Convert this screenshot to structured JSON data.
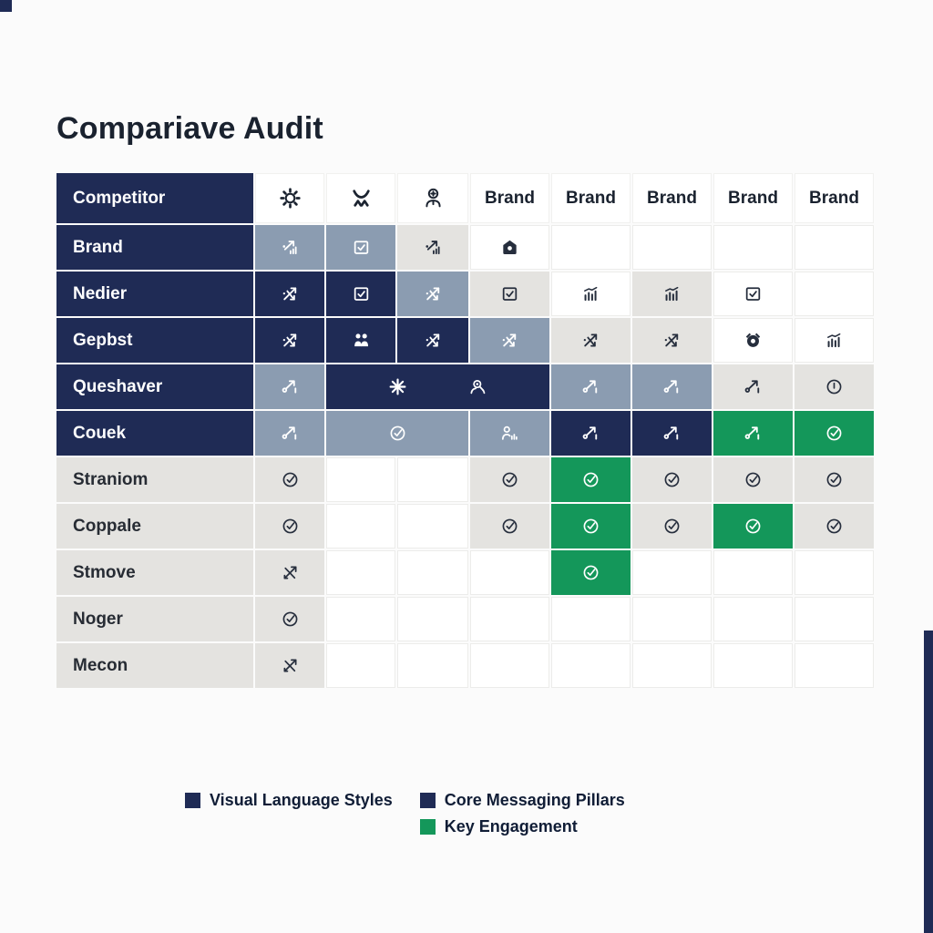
{
  "title": "Compariave Audit",
  "colors": {
    "navy": "#1f2b55",
    "slate": "#8b9cb1",
    "gray": "#e4e3e0",
    "green": "#14975a",
    "ink": "#1a222f",
    "page_background": "#fbfbfb"
  },
  "chart_data": {
    "type": "table",
    "title": "Compariave Audit",
    "header": {
      "competitor_label": "Competitor",
      "icon_columns": [
        "gear-icon",
        "activity-person-icon",
        "engineer-plus-icon"
      ],
      "brand_columns": [
        "Brand",
        "Brand",
        "Brand",
        "Brand",
        "Brand"
      ]
    },
    "rows": [
      {
        "label": "Brand",
        "label_style": "navy",
        "cells": [
          {
            "bg": "slate",
            "icon": "trend-chart-icon",
            "tone": "light"
          },
          {
            "bg": "slate",
            "icon": "checkbox-icon",
            "tone": "light"
          },
          {
            "bg": "gray",
            "icon": "trend-chart-icon",
            "tone": "dark"
          },
          {
            "bg": "white",
            "icon": "home-icon",
            "tone": "dark"
          },
          {
            "bg": "white"
          },
          {
            "bg": "white"
          },
          {
            "bg": "white"
          },
          {
            "bg": "white"
          }
        ]
      },
      {
        "label": "Nedier",
        "label_style": "navy",
        "cells": [
          {
            "bg": "navy",
            "icon": "crossed-trend-icon",
            "tone": "light"
          },
          {
            "bg": "navy",
            "icon": "checkbox-icon",
            "tone": "light"
          },
          {
            "bg": "slate",
            "icon": "crossed-trend-icon",
            "tone": "light"
          },
          {
            "bg": "gray",
            "icon": "checkbox-icon",
            "tone": "dark"
          },
          {
            "bg": "white",
            "icon": "bar-chart-icon",
            "tone": "dark"
          },
          {
            "bg": "gray",
            "icon": "bar-chart-icon",
            "tone": "dark"
          },
          {
            "bg": "white",
            "icon": "checkbox-icon",
            "tone": "dark"
          },
          {
            "bg": "white"
          }
        ]
      },
      {
        "label": "Gepbst",
        "label_style": "navy",
        "cells": [
          {
            "bg": "navy",
            "icon": "crossed-trend-icon",
            "tone": "light"
          },
          {
            "bg": "navy",
            "icon": "people-icon",
            "tone": "light"
          },
          {
            "bg": "navy",
            "icon": "crossed-trend-icon",
            "tone": "light"
          },
          {
            "bg": "slate",
            "icon": "crossed-trend-icon",
            "tone": "light"
          },
          {
            "bg": "gray",
            "icon": "crossed-trend-icon",
            "tone": "dark"
          },
          {
            "bg": "gray",
            "icon": "crossed-trend-icon",
            "tone": "dark"
          },
          {
            "bg": "white",
            "icon": "alarm-icon",
            "tone": "dark"
          },
          {
            "bg": "white",
            "icon": "bar-chart-icon",
            "tone": "dark"
          }
        ]
      },
      {
        "label": "Queshaver",
        "label_style": "navy",
        "cells": [
          {
            "bg": "slate",
            "icon": "trend-up-icon",
            "tone": "light"
          },
          {
            "bg": "navy",
            "span": 3,
            "icons": [
              "burst-icon",
              "person-search-icon"
            ],
            "tone": "light"
          },
          {
            "bg": "slate",
            "icon": "trend-up-icon",
            "tone": "light"
          },
          {
            "bg": "slate",
            "icon": "trend-up-icon",
            "tone": "light"
          },
          {
            "bg": "gray",
            "icon": "trend-up-icon",
            "tone": "dark"
          },
          {
            "bg": "gray",
            "icon": "alert-circle-icon",
            "tone": "dark"
          }
        ]
      },
      {
        "label": "Couek",
        "label_style": "navy",
        "cells": [
          {
            "bg": "slate",
            "icon": "trend-up-icon",
            "tone": "light"
          },
          {
            "bg": "slate",
            "span": 2,
            "icon": "check-circle-icon",
            "tone": "light"
          },
          {
            "bg": "slate",
            "icon": "person-chart-icon",
            "tone": "light"
          },
          {
            "bg": "navy",
            "icon": "trend-up-icon",
            "tone": "light"
          },
          {
            "bg": "navy",
            "icon": "trend-up-icon",
            "tone": "light"
          },
          {
            "bg": "green",
            "icon": "trend-up-icon",
            "tone": "light"
          },
          {
            "bg": "green",
            "icon": "check-circle-icon",
            "tone": "light"
          }
        ]
      },
      {
        "label": "Straniom",
        "label_style": "gray",
        "cells": [
          {
            "bg": "gray",
            "icon": "check-circle-icon",
            "tone": "dark"
          },
          {
            "bg": "white"
          },
          {
            "bg": "white"
          },
          {
            "bg": "gray",
            "icon": "check-circle-icon",
            "tone": "dark"
          },
          {
            "bg": "green",
            "icon": "check-circle-icon",
            "tone": "light"
          },
          {
            "bg": "gray",
            "icon": "check-circle-icon",
            "tone": "dark"
          },
          {
            "bg": "gray",
            "icon": "check-circle-icon",
            "tone": "dark"
          },
          {
            "bg": "gray",
            "icon": "check-circle-icon",
            "tone": "dark"
          }
        ]
      },
      {
        "label": "Coppale",
        "label_style": "gray",
        "cells": [
          {
            "bg": "gray",
            "icon": "check-circle-icon",
            "tone": "dark"
          },
          {
            "bg": "white"
          },
          {
            "bg": "white"
          },
          {
            "bg": "gray",
            "icon": "check-circle-icon",
            "tone": "dark"
          },
          {
            "bg": "green",
            "icon": "check-circle-icon",
            "tone": "light"
          },
          {
            "bg": "gray",
            "icon": "check-circle-icon",
            "tone": "dark"
          },
          {
            "bg": "green",
            "icon": "check-circle-icon",
            "tone": "light"
          },
          {
            "bg": "gray",
            "icon": "check-circle-icon",
            "tone": "dark"
          }
        ]
      },
      {
        "label": "Stmove",
        "label_style": "gray",
        "cells": [
          {
            "bg": "gray",
            "icon": "no-trend-icon",
            "tone": "dark"
          },
          {
            "bg": "white"
          },
          {
            "bg": "white"
          },
          {
            "bg": "white"
          },
          {
            "bg": "green",
            "icon": "check-circle-icon",
            "tone": "light"
          },
          {
            "bg": "white"
          },
          {
            "bg": "white"
          },
          {
            "bg": "white"
          }
        ]
      },
      {
        "label": "Noger",
        "label_style": "gray",
        "cells": [
          {
            "bg": "gray",
            "icon": "check-circle-icon",
            "tone": "dark"
          },
          {
            "bg": "white"
          },
          {
            "bg": "white"
          },
          {
            "bg": "white"
          },
          {
            "bg": "white"
          },
          {
            "bg": "white"
          },
          {
            "bg": "white"
          },
          {
            "bg": "white"
          }
        ]
      },
      {
        "label": "Mecon",
        "label_style": "gray",
        "cells": [
          {
            "bg": "gray",
            "icon": "no-trend-icon",
            "tone": "dark"
          },
          {
            "bg": "white"
          },
          {
            "bg": "white"
          },
          {
            "bg": "white"
          },
          {
            "bg": "white"
          },
          {
            "bg": "white"
          },
          {
            "bg": "white"
          },
          {
            "bg": "white"
          }
        ]
      }
    ],
    "legend": {
      "items": [
        {
          "label": "Visual Language Styles",
          "color": "#1f2b55"
        },
        {
          "label": "Core Messaging Pillars",
          "color": "#1f2b55"
        },
        {
          "label": "Key Engagement",
          "color": "#14975a"
        }
      ]
    }
  },
  "decor": {
    "right_bar_color": "#1f2b55",
    "corner_mark_color": "#1f2b55"
  }
}
